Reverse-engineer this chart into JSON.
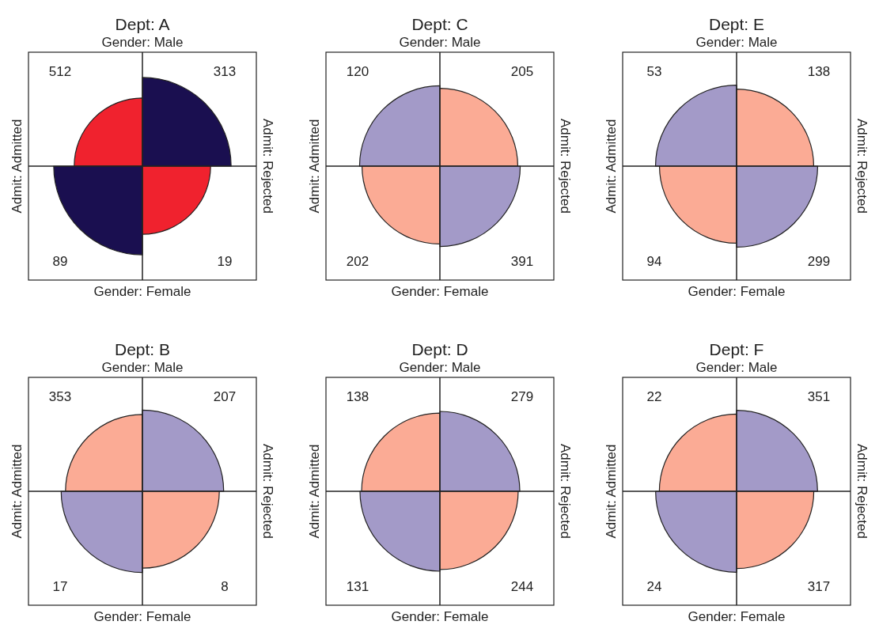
{
  "chart_data": [
    {
      "type": "other",
      "title": "Dept: A",
      "x2label": "Gender: Male",
      "xlabel": "Gender: Female",
      "ylabel": "Admit: Admitted",
      "y2label": "Admit: Rejected",
      "values": [
        512,
        313,
        89,
        19
      ],
      "colors": [
        "#f0222e",
        "#1a0f50",
        "#1a0f50",
        "#f0222e"
      ],
      "data_labels": true
    },
    {
      "type": "other",
      "title": "Dept: C",
      "x2label": "Gender: Male",
      "xlabel": "Gender: Female",
      "ylabel": "Admit: Admitted",
      "y2label": "Admit: Rejected",
      "values": [
        120,
        205,
        202,
        391
      ],
      "colors": [
        "#a39ac8",
        "#fbab95",
        "#fbab95",
        "#a39ac8"
      ],
      "data_labels": true
    },
    {
      "type": "other",
      "title": "Dept: E",
      "x2label": "Gender: Male",
      "xlabel": "Gender: Female",
      "ylabel": "Admit: Admitted",
      "y2label": "Admit: Rejected",
      "values": [
        53,
        138,
        94,
        299
      ],
      "colors": [
        "#a39ac8",
        "#fbab95",
        "#fbab95",
        "#a39ac8"
      ],
      "data_labels": true
    },
    {
      "type": "other",
      "title": "Dept: B",
      "x2label": "Gender: Male",
      "xlabel": "Gender: Female",
      "ylabel": "Admit: Admitted",
      "y2label": "Admit: Rejected",
      "values": [
        353,
        207,
        17,
        8
      ],
      "colors": [
        "#fbab95",
        "#a39ac8",
        "#a39ac8",
        "#fbab95"
      ],
      "data_labels": true
    },
    {
      "type": "other",
      "title": "Dept: D",
      "x2label": "Gender: Male",
      "xlabel": "Gender: Female",
      "ylabel": "Admit: Admitted",
      "y2label": "Admit: Rejected",
      "values": [
        138,
        279,
        131,
        244
      ],
      "colors": [
        "#fbab95",
        "#a39ac8",
        "#a39ac8",
        "#fbab95"
      ],
      "data_labels": true
    },
    {
      "type": "other",
      "title": "Dept: F",
      "x2label": "Gender: Male",
      "xlabel": "Gender: Female",
      "ylabel": "Admit: Admitted",
      "y2label": "Admit: Rejected",
      "values": [
        22,
        351,
        24,
        317
      ],
      "colors": [
        "#fbab95",
        "#a39ac8",
        "#a39ac8",
        "#fbab95"
      ],
      "data_labels": true
    }
  ]
}
